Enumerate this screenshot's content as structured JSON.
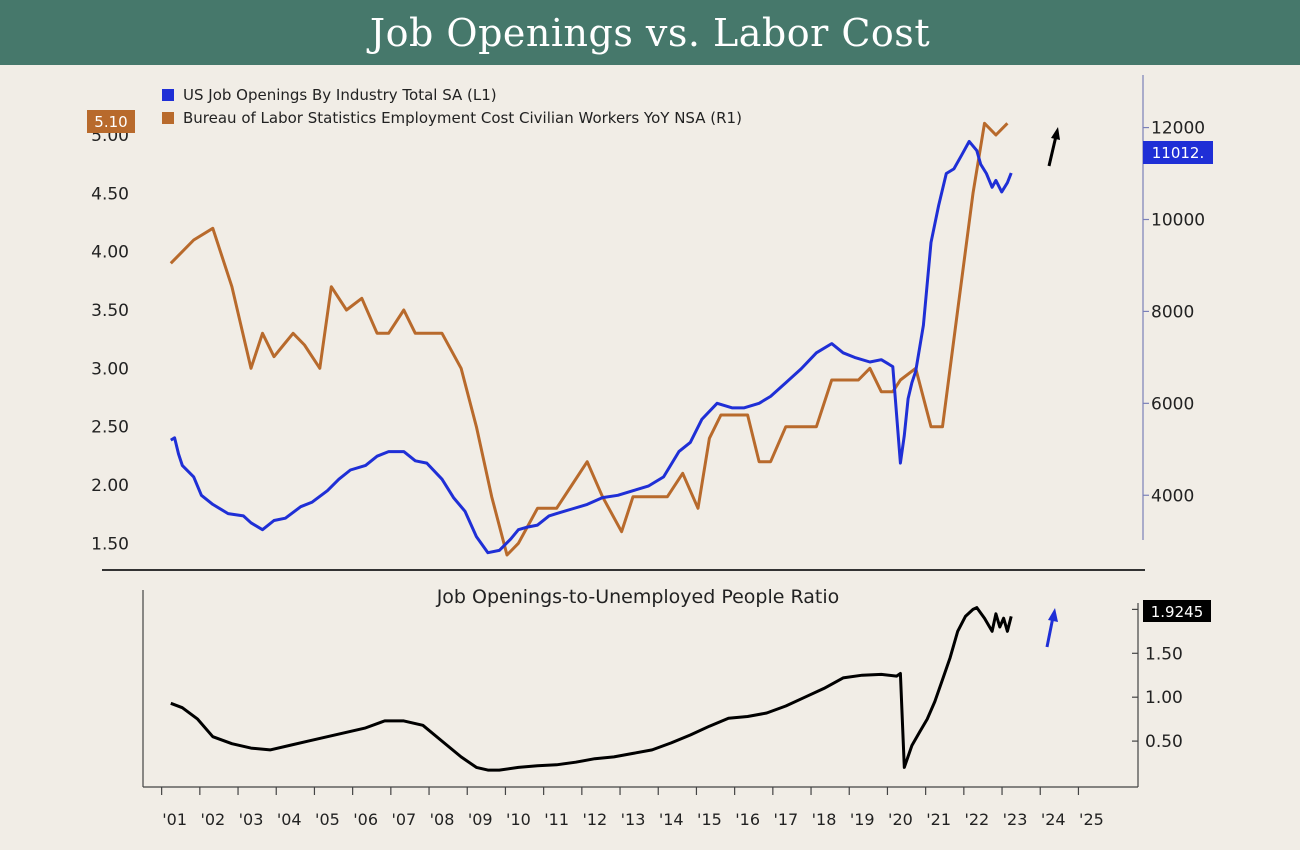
{
  "title": "Job Openings vs. Labor Cost",
  "colors": {
    "header": "#46786b",
    "background": "#f1ede6",
    "openings": "#1f2fd6",
    "cost": "#b86a2c",
    "ratio": "#000000"
  },
  "chart_data": [
    {
      "type": "line",
      "panel": "top",
      "legend": [
        {
          "name": "US Job Openings By Industry Total SA (L1)",
          "color": "#1f2fd6"
        },
        {
          "name": "Bureau of Labor Statistics Employment Cost Civilian Workers YoY NSA (R1)",
          "color": "#b86a2c"
        }
      ],
      "left_axis": {
        "ylim": [
          1.4,
          5.3
        ],
        "ticks": [
          "1.50",
          "2.00",
          "2.50",
          "3.00",
          "3.50",
          "4.00",
          "4.50",
          "5.00"
        ]
      },
      "right_axis": {
        "ylim": [
          2700,
          12600
        ],
        "ticks": [
          "4000",
          "6000",
          "8000",
          "10000",
          "12000"
        ]
      },
      "last_value_labels": {
        "cost": "5.10",
        "openings": "11012."
      },
      "series": [
        {
          "name": "US Job Openings By Industry Total SA (L1)",
          "axis": "right",
          "x": [
            2000.9,
            2001.0,
            2001.1,
            2001.2,
            2001.5,
            2001.7,
            2002.0,
            2002.4,
            2002.8,
            2003.0,
            2003.3,
            2003.6,
            2003.9,
            2004.3,
            2004.6,
            2005.0,
            2005.3,
            2005.6,
            2006.0,
            2006.3,
            2006.6,
            2007.0,
            2007.3,
            2007.6,
            2008.0,
            2008.3,
            2008.6,
            2008.9,
            2009.2,
            2009.5,
            2009.8,
            2010.0,
            2010.2,
            2010.5,
            2010.8,
            2011.0,
            2011.4,
            2011.8,
            2012.2,
            2012.6,
            2013.0,
            2013.4,
            2013.8,
            2014.2,
            2014.5,
            2014.8,
            2015.2,
            2015.6,
            2015.9,
            2016.3,
            2016.6,
            2017.0,
            2017.4,
            2017.8,
            2018.2,
            2018.5,
            2018.8,
            2019.2,
            2019.5,
            2019.8,
            2020.0,
            2020.1,
            2020.2,
            2020.3,
            2020.4,
            2020.6,
            2020.8,
            2021.0,
            2021.2,
            2021.4,
            2021.6,
            2021.8,
            2022.0,
            2022.1,
            2022.25,
            2022.4,
            2022.5,
            2022.65,
            2022.8,
            2022.9
          ],
          "values": [
            5200,
            5250,
            4900,
            4650,
            4400,
            4000,
            3800,
            3600,
            3550,
            3400,
            3250,
            3450,
            3500,
            3750,
            3850,
            4100,
            4350,
            4550,
            4650,
            4850,
            4950,
            4950,
            4750,
            4700,
            4350,
            3950,
            3650,
            3100,
            2750,
            2800,
            3050,
            3250,
            3300,
            3350,
            3550,
            3600,
            3700,
            3800,
            3950,
            4000,
            4100,
            4200,
            4400,
            4950,
            5150,
            5650,
            6000,
            5900,
            5900,
            6000,
            6150,
            6450,
            6750,
            7100,
            7300,
            7100,
            7000,
            6900,
            6950,
            6800,
            4700,
            5300,
            6100,
            6450,
            6700,
            7700,
            9500,
            10300,
            11000,
            11100,
            11400,
            11700,
            11500,
            11200,
            11000,
            10700,
            10850,
            10600,
            10800,
            11012
          ]
        },
        {
          "name": "Bureau of Labor Statistics Employment Cost Civilian Workers YoY NSA (R1)",
          "axis": "left",
          "x": [
            2000.9,
            2001.5,
            2002.0,
            2002.5,
            2003.0,
            2003.3,
            2003.6,
            2003.85,
            2004.1,
            2004.4,
            2004.8,
            2005.1,
            2005.5,
            2005.9,
            2006.3,
            2006.6,
            2007.0,
            2007.3,
            2007.6,
            2008.0,
            2008.5,
            2008.9,
            2009.3,
            2009.7,
            2010.0,
            2010.5,
            2011.0,
            2011.4,
            2011.8,
            2012.2,
            2012.7,
            2013.0,
            2013.4,
            2013.9,
            2014.3,
            2014.7,
            2015.0,
            2015.3,
            2015.6,
            2016.0,
            2016.3,
            2016.6,
            2017.0,
            2017.4,
            2017.8,
            2018.2,
            2018.6,
            2018.9,
            2019.2,
            2019.5,
            2019.8,
            2020.0,
            2020.4,
            2020.8,
            2021.1,
            2021.5,
            2021.9,
            2022.2,
            2022.5,
            2022.8
          ],
          "values": [
            3.9,
            4.1,
            4.2,
            3.7,
            3.0,
            3.3,
            3.1,
            3.2,
            3.3,
            3.2,
            3.0,
            3.7,
            3.5,
            3.6,
            3.3,
            3.3,
            3.5,
            3.3,
            3.3,
            3.3,
            3.0,
            2.5,
            1.9,
            1.4,
            1.5,
            1.8,
            1.8,
            2.0,
            2.2,
            1.9,
            1.6,
            1.9,
            1.9,
            1.9,
            2.1,
            1.8,
            2.4,
            2.6,
            2.6,
            2.6,
            2.2,
            2.2,
            2.5,
            2.5,
            2.5,
            2.9,
            2.9,
            2.9,
            3.0,
            2.8,
            2.8,
            2.9,
            3.0,
            2.5,
            2.5,
            3.5,
            4.5,
            5.1,
            5.0,
            5.1
          ]
        }
      ]
    },
    {
      "type": "line",
      "panel": "bottom",
      "title": "Job Openings-to-Unemployed People Ratio",
      "right_axis": {
        "ylim": [
          0.0,
          2.05
        ],
        "ticks": [
          "0.50",
          "1.00",
          "1.50",
          "2.00"
        ]
      },
      "last_value_label": "1.9245",
      "x_tick_labels": [
        "'01",
        "'02",
        "'03",
        "'04",
        "'05",
        "'06",
        "'07",
        "'08",
        "'09",
        "'10",
        "'11",
        "'12",
        "'13",
        "'14",
        "'15",
        "'16",
        "'17",
        "'18",
        "'19",
        "'20",
        "'21",
        "'22",
        "'23",
        "'24",
        "'25"
      ],
      "xlim": [
        2000.8,
        2025.8
      ],
      "series": [
        {
          "name": "Job Openings-to-Unemployed People Ratio",
          "x": [
            2000.9,
            2001.2,
            2001.6,
            2002.0,
            2002.5,
            2003.0,
            2003.5,
            2004.0,
            2004.5,
            2005.0,
            2005.5,
            2006.0,
            2006.5,
            2007.0,
            2007.5,
            2008.0,
            2008.5,
            2008.9,
            2009.2,
            2009.5,
            2010.0,
            2010.5,
            2011.0,
            2011.5,
            2012.0,
            2012.5,
            2013.0,
            2013.5,
            2014.0,
            2014.5,
            2015.0,
            2015.5,
            2016.0,
            2016.5,
            2017.0,
            2017.5,
            2018.0,
            2018.5,
            2019.0,
            2019.5,
            2019.9,
            2020.0,
            2020.1,
            2020.3,
            2020.5,
            2020.7,
            2020.9,
            2021.1,
            2021.3,
            2021.5,
            2021.7,
            2021.9,
            2022.0,
            2022.2,
            2022.4,
            2022.5,
            2022.6,
            2022.7,
            2022.8,
            2022.9
          ],
          "values": [
            0.93,
            0.88,
            0.75,
            0.55,
            0.47,
            0.42,
            0.4,
            0.45,
            0.5,
            0.55,
            0.6,
            0.65,
            0.73,
            0.73,
            0.68,
            0.5,
            0.32,
            0.2,
            0.17,
            0.17,
            0.2,
            0.22,
            0.23,
            0.26,
            0.3,
            0.32,
            0.36,
            0.4,
            0.48,
            0.57,
            0.67,
            0.76,
            0.78,
            0.82,
            0.9,
            1.0,
            1.1,
            1.22,
            1.25,
            1.26,
            1.24,
            1.27,
            0.2,
            0.45,
            0.6,
            0.75,
            0.95,
            1.2,
            1.45,
            1.75,
            1.92,
            2.0,
            2.02,
            1.9,
            1.75,
            1.95,
            1.8,
            1.9,
            1.75,
            1.92
          ]
        }
      ]
    }
  ]
}
